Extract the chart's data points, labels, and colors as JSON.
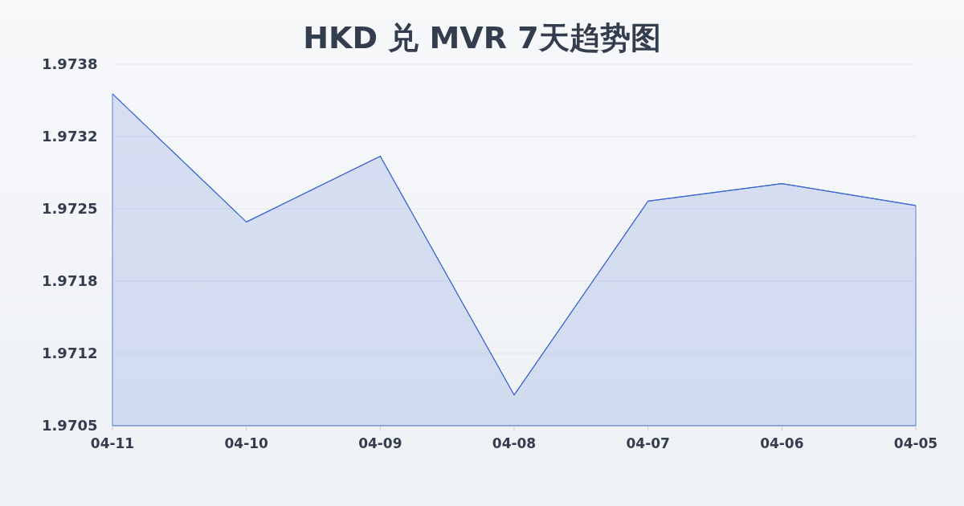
{
  "chart_data": {
    "type": "area",
    "title": "HKD 兑 MVR 7天趋势图",
    "categories": [
      "04-11",
      "04-10",
      "04-09",
      "04-08",
      "04-07",
      "04-06",
      "04-05"
    ],
    "series": [
      {
        "color": "#3a66d0",
        "values": [
          1.97355,
          1.97238,
          1.97298,
          1.9708,
          1.97257,
          1.97273,
          1.97253
        ]
      }
    ],
    "ylim": [
      1.97052,
      1.97382
    ],
    "yticks": [
      {
        "value": 1.97052,
        "label": "1.9705"
      },
      {
        "value": 1.97118,
        "label": "1.9712"
      },
      {
        "value": 1.97184,
        "label": "1.9718"
      },
      {
        "value": 1.9725,
        "label": "1.9725"
      },
      {
        "value": 1.97316,
        "label": "1.9732"
      },
      {
        "value": 1.97382,
        "label": "1.9738"
      }
    ],
    "grid": "y"
  }
}
